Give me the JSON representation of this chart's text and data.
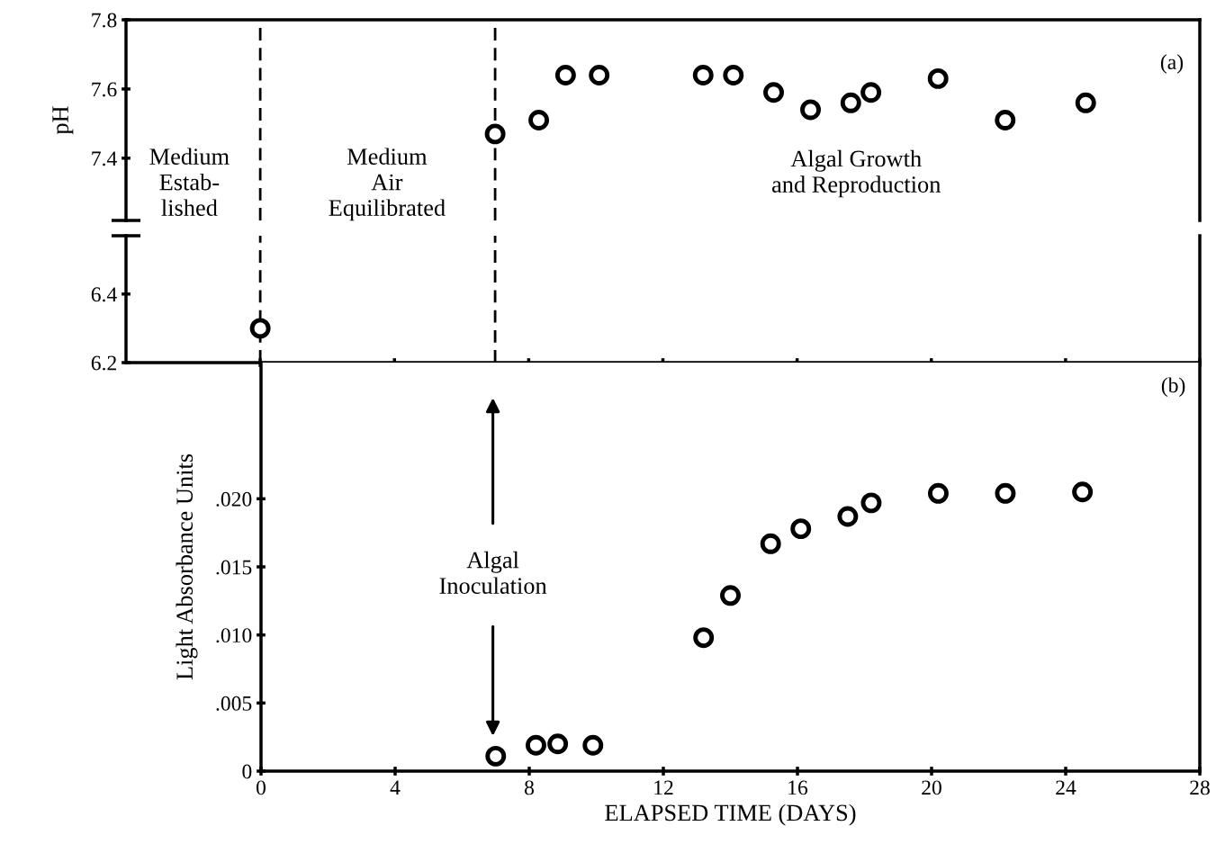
{
  "chart_data": [
    {
      "type": "scatter",
      "ylabel": "pH",
      "xlim": [
        -4,
        28
      ],
      "xticks": [
        0,
        4,
        8,
        12,
        16,
        20,
        24,
        28
      ],
      "ylim": [
        7.22,
        7.8
      ],
      "yticks": [
        7.4,
        7.6,
        7.8
      ],
      "tick_labels": "y",
      "marker": "circle",
      "grid": false,
      "series": [
        {
          "color": "#000000",
          "x": [
            7.0,
            8.3,
            9.1,
            10.1,
            13.2,
            14.1,
            15.3,
            16.4,
            17.6,
            18.2,
            20.2,
            22.2,
            24.6
          ],
          "values": [
            7.47,
            7.51,
            7.64,
            7.64,
            7.64,
            7.64,
            7.59,
            7.54,
            7.56,
            7.59,
            7.63,
            7.51,
            7.56
          ]
        }
      ],
      "ref_lines": [
        {
          "axis": "x",
          "value": 0,
          "line_style": "dashed",
          "color": "#000000"
        },
        {
          "axis": "x",
          "value": 7,
          "line_style": "dashed",
          "color": "#000000"
        }
      ],
      "annotations": [
        "Medium\nEstab-\nlished",
        "Medium\nAir\nEquilibrated",
        "Algal Growth\nand Reproduction",
        "(a)"
      ]
    },
    {
      "type": "scatter",
      "xlim": [
        -4,
        28
      ],
      "xticks": [
        0,
        4,
        8,
        12,
        16,
        20,
        24,
        28
      ],
      "ylim": [
        6.2,
        6.57
      ],
      "yticks": [
        6.2,
        6.4
      ],
      "tick_labels": "y",
      "marker": "circle",
      "grid": false,
      "series": [
        {
          "color": "#000000",
          "x": [
            0
          ],
          "values": [
            6.3
          ]
        }
      ],
      "ref_lines": [
        {
          "axis": "x",
          "value": 0,
          "line_style": "dashed",
          "color": "#000000"
        },
        {
          "axis": "x",
          "value": 7,
          "line_style": "dashed",
          "color": "#000000"
        }
      ]
    },
    {
      "type": "scatter",
      "xlabel": "ELAPSED TIME (DAYS)",
      "ylabel": "Light Absorbance Units",
      "xlim": [
        0,
        28
      ],
      "xticks": [
        0,
        4,
        8,
        12,
        16,
        20,
        24,
        28
      ],
      "ylim": [
        0,
        0.03
      ],
      "yticks": [
        0,
        {
          "value": 0.005,
          "label": ".005"
        },
        {
          "value": 0.01,
          "label": ".010"
        },
        {
          "value": 0.015,
          "label": ".015"
        },
        {
          "value": 0.02,
          "label": ".020"
        }
      ],
      "marker": "circle",
      "grid": false,
      "series": [
        {
          "color": "#000000",
          "x": [
            7.0,
            8.2,
            8.85,
            9.9,
            13.2,
            14.0,
            15.2,
            16.1,
            17.5,
            18.2,
            20.2,
            22.2,
            24.5
          ],
          "values": [
            0.0011,
            0.0019,
            0.002,
            0.0019,
            0.0098,
            0.0129,
            0.0167,
            0.0178,
            0.0187,
            0.0197,
            0.0204,
            0.0204,
            0.0205
          ]
        }
      ],
      "annotations": [
        "Algal\nInoculation",
        "(b)"
      ]
    }
  ]
}
